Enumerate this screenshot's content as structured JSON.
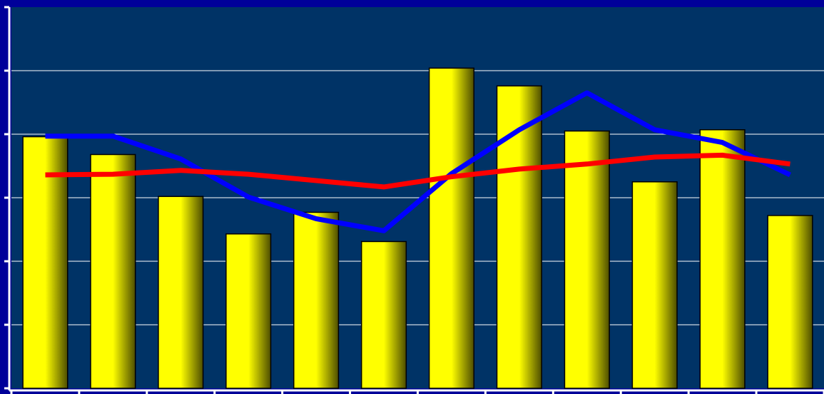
{
  "colors": {
    "outer_background": "#000099",
    "plot_background": "#003366",
    "gridline": "#FFFFFF",
    "axis": "#FFFFFF",
    "bar_fill_light": "#FFFF00",
    "bar_fill_dark": "#4D4D00",
    "bar_stroke": "#000000",
    "series_blue": "#0000FF",
    "series_red": "#FF0000"
  },
  "chart_data": {
    "type": "bar",
    "categories": [
      "",
      "",
      "",
      "",
      "",
      "",
      "",
      "",
      "",
      "",
      "",
      ""
    ],
    "ylim": [
      0,
      6
    ],
    "grid": true,
    "yticks": [
      0,
      1,
      2,
      3,
      4,
      5,
      6
    ],
    "series": [
      {
        "type": "bar",
        "color": "#FFFF00",
        "values": [
          3.96,
          3.68,
          3.02,
          2.43,
          2.77,
          2.31,
          5.04,
          4.76,
          4.05,
          3.25,
          4.07,
          2.72
        ]
      },
      {
        "type": "line",
        "color": "#0000FF",
        "values": [
          3.97,
          3.97,
          3.61,
          3.01,
          2.67,
          2.48,
          3.38,
          4.07,
          4.65,
          4.07,
          3.87,
          3.36
        ]
      },
      {
        "type": "line",
        "color": "#FF0000",
        "values": [
          3.36,
          3.37,
          3.43,
          3.37,
          3.27,
          3.17,
          3.33,
          3.45,
          3.53,
          3.64,
          3.67,
          3.53
        ]
      }
    ]
  }
}
